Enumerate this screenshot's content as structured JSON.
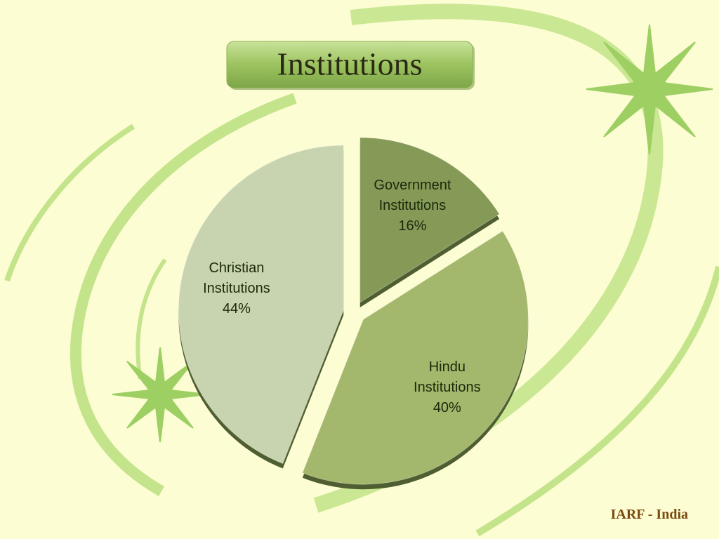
{
  "chart_data": {
    "type": "pie",
    "title": "Institutions",
    "footer": "IARF - India",
    "categories": [
      "Government Institutions",
      "Hindu Institutions",
      "Christian Institutions"
    ],
    "values": [
      16,
      40,
      44
    ],
    "value_labels": [
      "16%",
      "40%",
      "44%"
    ],
    "colors": [
      "#869a58",
      "#a3b86c",
      "#c8d4af"
    ]
  }
}
